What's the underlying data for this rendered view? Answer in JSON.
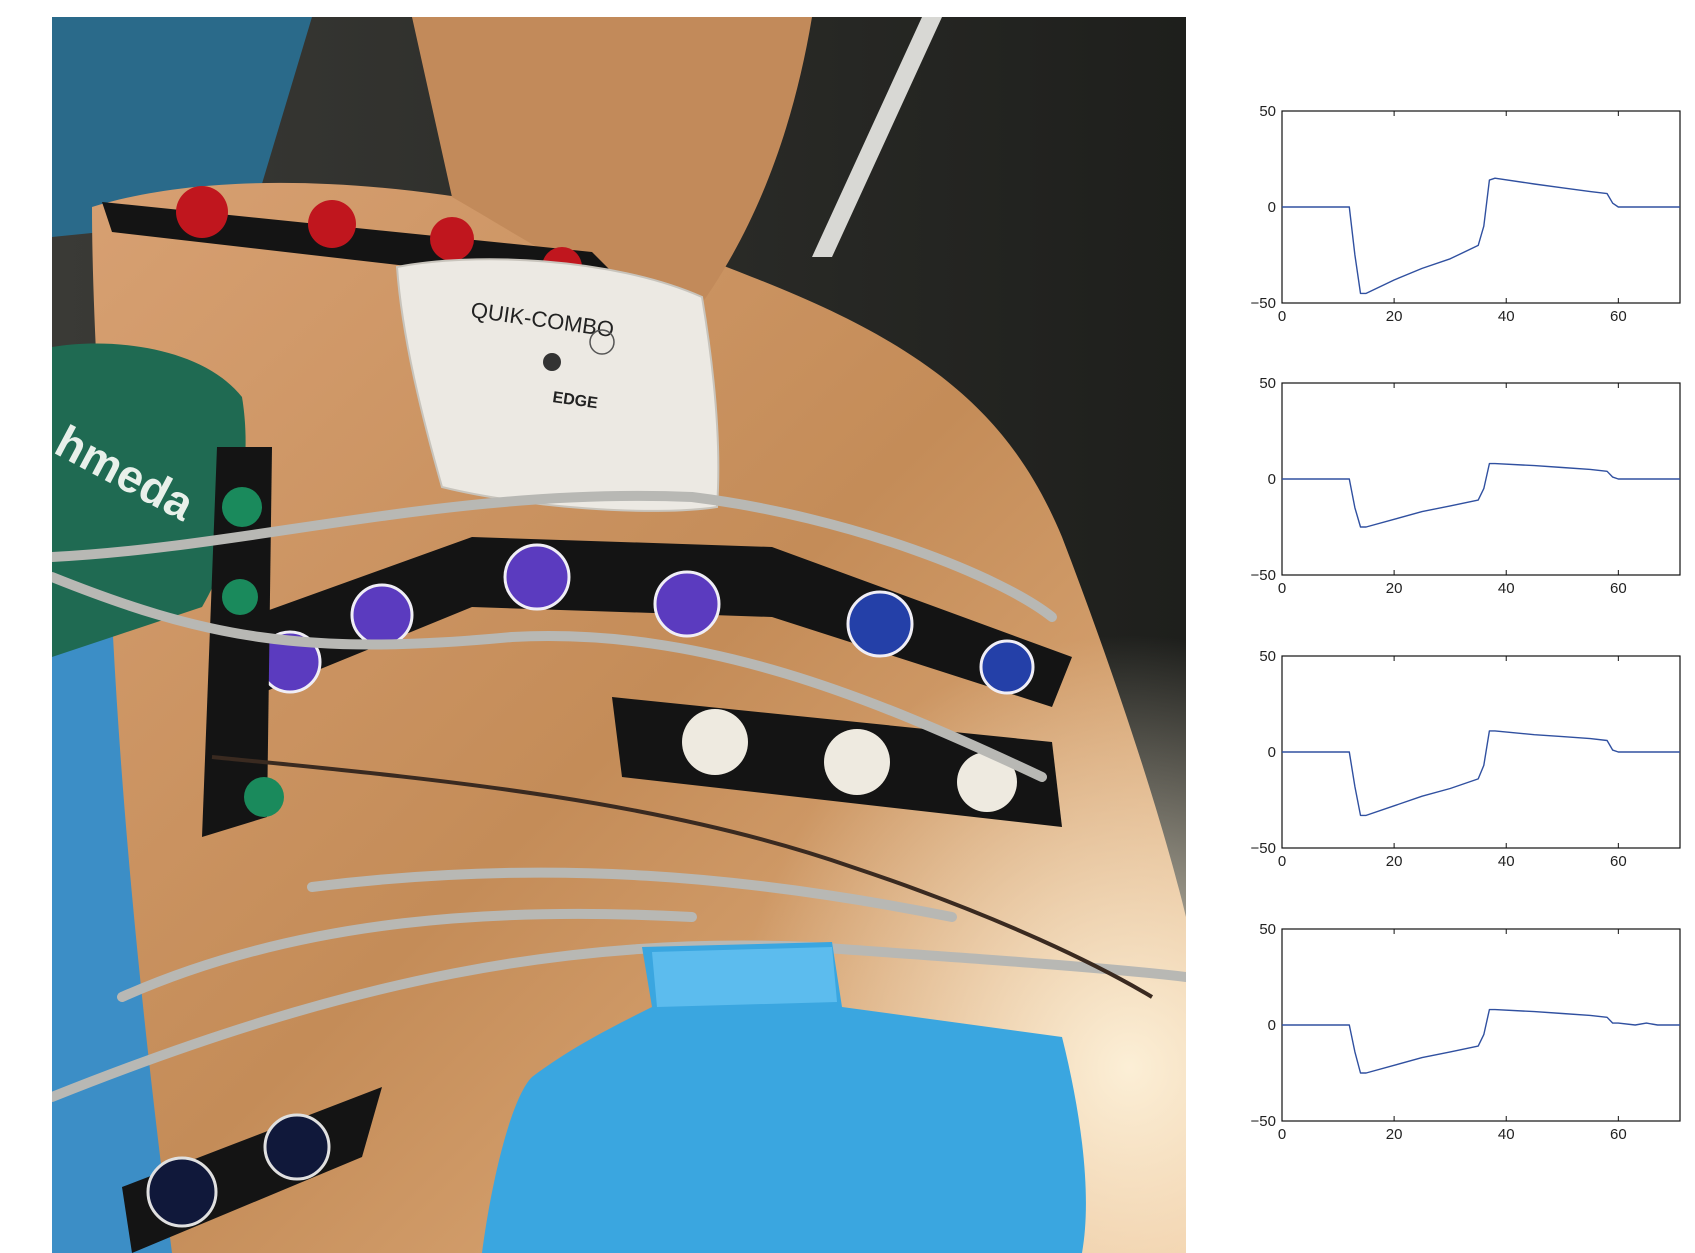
{
  "photo": {
    "pad_brand": "QUIK-COMBO",
    "pad_model": "EDGE",
    "cuff_text": "hmeda"
  },
  "colors": {
    "skin": "#c08a57",
    "strap": "#141414",
    "electrode_red": "#c0161e",
    "electrode_green": "#1a8a5c",
    "electrode_purple": "#5b3bbf",
    "electrode_blue": "#2440a8",
    "electrode_white": "#eeeae0",
    "pad_blue": "#3aa6e0",
    "cuff_green": "#1f6a52",
    "line_color": "#3050a0"
  },
  "chart_data": [
    {
      "type": "line",
      "xlim": [
        0,
        71
      ],
      "ylim": [
        -50,
        50
      ],
      "xticks": [
        0,
        20,
        40,
        60
      ],
      "yticks": [
        -50,
        0,
        50
      ],
      "series": [
        {
          "x": [
            0,
            12,
            13,
            14,
            15,
            20,
            25,
            30,
            35,
            36,
            37,
            38,
            45,
            50,
            55,
            58,
            59,
            60,
            65,
            71
          ],
          "y": [
            0,
            0,
            -25,
            -45,
            -45,
            -38,
            -32,
            -27,
            -20,
            -10,
            14,
            15,
            12,
            10,
            8,
            7,
            2,
            0,
            0,
            0
          ]
        }
      ]
    },
    {
      "type": "line",
      "xlim": [
        0,
        71
      ],
      "ylim": [
        -50,
        50
      ],
      "xticks": [
        0,
        20,
        40,
        60
      ],
      "yticks": [
        -50,
        0,
        50
      ],
      "series": [
        {
          "x": [
            0,
            12,
            13,
            14,
            15,
            20,
            25,
            30,
            35,
            36,
            37,
            38,
            45,
            50,
            55,
            58,
            59,
            60,
            65,
            71
          ],
          "y": [
            0,
            0,
            -15,
            -25,
            -25,
            -21,
            -17,
            -14,
            -11,
            -5,
            8,
            8,
            7,
            6,
            5,
            4,
            1,
            0,
            0,
            0
          ]
        }
      ]
    },
    {
      "type": "line",
      "xlim": [
        0,
        71
      ],
      "ylim": [
        -50,
        50
      ],
      "xticks": [
        0,
        20,
        40,
        60
      ],
      "yticks": [
        -50,
        0,
        50
      ],
      "series": [
        {
          "x": [
            0,
            12,
            13,
            14,
            15,
            20,
            25,
            30,
            35,
            36,
            37,
            38,
            45,
            50,
            55,
            58,
            59,
            60,
            65,
            71
          ],
          "y": [
            0,
            0,
            -18,
            -33,
            -33,
            -28,
            -23,
            -19,
            -14,
            -7,
            11,
            11,
            9,
            8,
            7,
            6,
            1,
            0,
            0,
            0
          ]
        }
      ]
    },
    {
      "type": "line",
      "xlim": [
        0,
        71
      ],
      "ylim": [
        -50,
        50
      ],
      "xticks": [
        0,
        20,
        40,
        60
      ],
      "yticks": [
        -50,
        0,
        50
      ],
      "series": [
        {
          "x": [
            0,
            12,
            13,
            14,
            15,
            20,
            25,
            30,
            35,
            36,
            37,
            38,
            45,
            50,
            55,
            58,
            59,
            60,
            63,
            65,
            67,
            71
          ],
          "y": [
            0,
            0,
            -14,
            -25,
            -25,
            -21,
            -17,
            -14,
            -11,
            -5,
            8,
            8,
            7,
            6,
            5,
            4,
            1,
            1,
            0,
            1,
            0,
            0
          ]
        }
      ]
    }
  ]
}
